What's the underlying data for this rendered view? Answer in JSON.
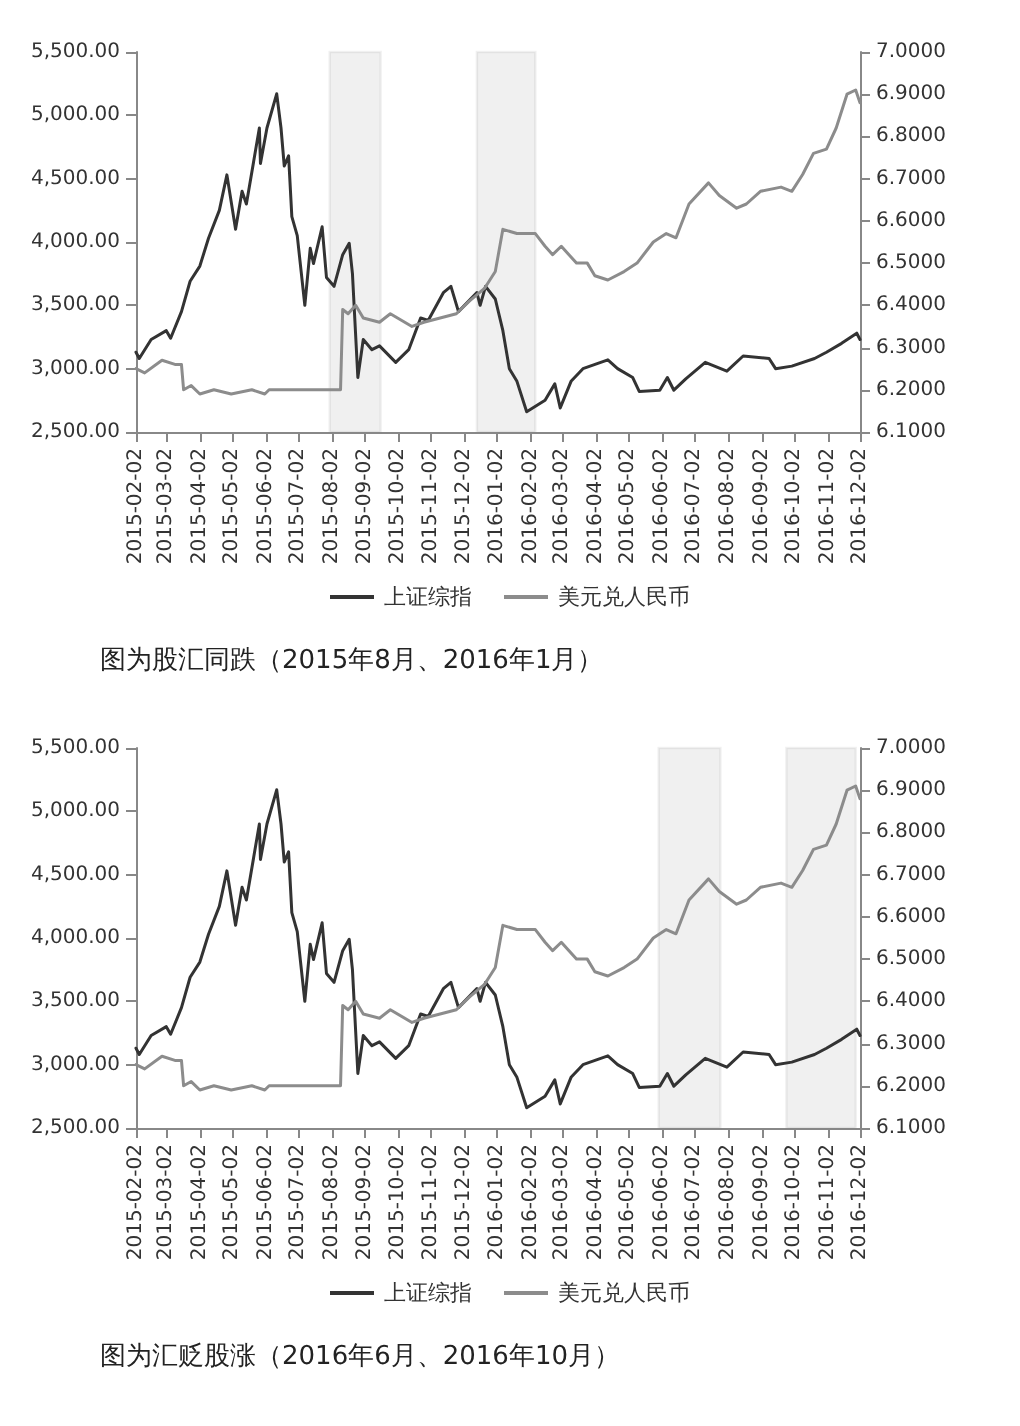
{
  "chart_data": [
    {
      "type": "line",
      "legend": "bottom",
      "marker": "none",
      "line_style": "solid",
      "grid": false,
      "xlim": [
        "2015-02-02",
        "2016-12-02"
      ],
      "xticks": [
        "2015-02-02",
        "2015-03-02",
        "2015-04-02",
        "2015-05-02",
        "2015-06-02",
        "2015-07-02",
        "2015-08-02",
        "2015-09-02",
        "2015-10-02",
        "2015-11-02",
        "2015-12-02",
        "2016-01-02",
        "2016-02-02",
        "2016-03-02",
        "2016-04-02",
        "2016-05-02",
        "2016-06-02",
        "2016-07-02",
        "2016-08-02",
        "2016-09-02",
        "2016-10-02",
        "2016-11-02",
        "2016-12-02"
      ],
      "ylim": [
        2500,
        5500
      ],
      "yticks": [
        {
          "value": 2500,
          "label": "2,500.00"
        },
        {
          "value": 3000,
          "label": "3,000.00"
        },
        {
          "value": 3500,
          "label": "3,500.00"
        },
        {
          "value": 4000,
          "label": "4,000.00"
        },
        {
          "value": 4500,
          "label": "4,500.00"
        },
        {
          "value": 5000,
          "label": "5,000.00"
        },
        {
          "value": 5500,
          "label": "5,500.00"
        }
      ],
      "y2lim": [
        6.1,
        7.0
      ],
      "y2ticks": [
        {
          "value": 6.1,
          "label": "6.1000"
        },
        {
          "value": 6.2,
          "label": "6.2000"
        },
        {
          "value": 6.3,
          "label": "6.3000"
        },
        {
          "value": 6.4,
          "label": "6.4000"
        },
        {
          "value": 6.5,
          "label": "6.5000"
        },
        {
          "value": 6.6,
          "label": "6.6000"
        },
        {
          "value": 6.7,
          "label": "6.7000"
        },
        {
          "value": 6.8,
          "label": "6.8000"
        },
        {
          "value": 6.9,
          "label": "6.9000"
        },
        {
          "value": 7.0,
          "label": "7.0000"
        }
      ],
      "series": [
        {
          "name": "上证综指",
          "color": "#333333",
          "x": [
            "2015-02-02",
            "2015-02-05",
            "2015-02-16",
            "2015-03-02",
            "2015-03-06",
            "2015-03-16",
            "2015-03-24",
            "2015-04-02",
            "2015-04-10",
            "2015-04-20",
            "2015-04-27",
            "2015-05-05",
            "2015-05-11",
            "2015-05-15",
            "2015-05-27",
            "2015-05-28",
            "2015-06-03",
            "2015-06-12",
            "2015-06-16",
            "2015-06-19",
            "2015-06-23",
            "2015-06-26",
            "2015-07-01",
            "2015-07-08",
            "2015-07-13",
            "2015-07-16",
            "2015-07-24",
            "2015-07-28",
            "2015-08-04",
            "2015-08-12",
            "2015-08-18",
            "2015-08-21",
            "2015-08-26",
            "2015-08-31",
            "2015-09-08",
            "2015-09-15",
            "2015-09-30",
            "2015-10-12",
            "2015-10-23",
            "2015-10-30",
            "2015-11-13",
            "2015-11-20",
            "2015-11-27",
            "2015-12-14",
            "2015-12-17",
            "2015-12-22",
            "2015-12-31",
            "2016-01-07",
            "2016-01-13",
            "2016-01-20",
            "2016-01-29",
            "2016-02-15",
            "2016-02-24",
            "2016-02-29",
            "2016-03-10",
            "2016-03-21",
            "2016-04-13",
            "2016-04-22",
            "2016-05-06",
            "2016-05-12",
            "2016-05-31",
            "2016-06-07",
            "2016-06-13",
            "2016-06-24",
            "2016-07-12",
            "2016-08-01",
            "2016-08-16",
            "2016-09-09",
            "2016-09-15",
            "2016-09-30",
            "2016-10-21",
            "2016-11-01",
            "2016-11-15",
            "2016-11-29",
            "2016-12-02"
          ],
          "values": [
            3130,
            3080,
            3230,
            3300,
            3240,
            3450,
            3690,
            3810,
            4030,
            4250,
            4530,
            4100,
            4400,
            4300,
            4900,
            4620,
            4900,
            5170,
            4900,
            4600,
            4680,
            4200,
            4050,
            3500,
            3950,
            3830,
            4120,
            3720,
            3650,
            3900,
            3990,
            3750,
            2930,
            3230,
            3150,
            3180,
            3050,
            3150,
            3400,
            3380,
            3600,
            3650,
            3450,
            3600,
            3500,
            3650,
            3550,
            3300,
            3000,
            2900,
            2660,
            2750,
            2880,
            2690,
            2900,
            3000,
            3070,
            3000,
            2930,
            2820,
            2830,
            2930,
            2830,
            2920,
            3050,
            2980,
            3100,
            3080,
            3000,
            3020,
            3080,
            3130,
            3200,
            3280,
            3230
          ]
        },
        {
          "name": "美元兑人民币",
          "color": "#8c8c8c",
          "axis": "y2",
          "x": [
            "2015-02-02",
            "2015-02-10",
            "2015-02-26",
            "2015-03-10",
            "2015-03-16",
            "2015-03-18",
            "2015-03-25",
            "2015-04-02",
            "2015-04-15",
            "2015-05-01",
            "2015-05-20",
            "2015-06-01",
            "2015-06-05",
            "2015-07-01",
            "2015-08-10",
            "2015-08-12",
            "2015-08-17",
            "2015-08-24",
            "2015-08-31",
            "2015-09-15",
            "2015-09-25",
            "2015-10-15",
            "2015-10-26",
            "2015-11-10",
            "2015-11-25",
            "2015-12-07",
            "2015-12-21",
            "2015-12-31",
            "2016-01-07",
            "2016-01-20",
            "2016-02-06",
            "2016-02-15",
            "2016-02-22",
            "2016-03-01",
            "2016-03-15",
            "2016-03-25",
            "2016-04-01",
            "2016-04-13",
            "2016-04-28",
            "2016-05-10",
            "2016-05-25",
            "2016-06-06",
            "2016-06-15",
            "2016-06-27",
            "2016-07-15",
            "2016-07-25",
            "2016-08-10",
            "2016-08-19",
            "2016-09-01",
            "2016-09-20",
            "2016-09-30",
            "2016-10-10",
            "2016-10-20",
            "2016-11-01",
            "2016-11-10",
            "2016-11-20",
            "2016-11-28",
            "2016-12-02"
          ],
          "values": [
            6.25,
            6.24,
            6.27,
            6.26,
            6.26,
            6.2,
            6.21,
            6.19,
            6.2,
            6.19,
            6.2,
            6.19,
            6.2,
            6.2,
            6.2,
            6.39,
            6.38,
            6.4,
            6.37,
            6.36,
            6.38,
            6.35,
            6.36,
            6.37,
            6.38,
            6.41,
            6.44,
            6.48,
            6.58,
            6.57,
            6.57,
            6.54,
            6.52,
            6.54,
            6.5,
            6.5,
            6.47,
            6.46,
            6.48,
            6.5,
            6.55,
            6.57,
            6.56,
            6.64,
            6.69,
            6.66,
            6.63,
            6.64,
            6.67,
            6.68,
            6.67,
            6.71,
            6.76,
            6.77,
            6.82,
            6.9,
            6.91,
            6.88
          ]
        }
      ],
      "bands": [
        {
          "axis": "x",
          "from": "2015-07-31",
          "to": "2015-09-16",
          "color": "#808080"
        },
        {
          "axis": "x",
          "from": "2015-12-14",
          "to": "2016-02-06",
          "color": "#808080"
        }
      ],
      "annotations": [
        "图为股汇同跌（2015年8月、2016年1月）"
      ]
    },
    {
      "type": "line",
      "legend": "bottom",
      "marker": "none",
      "line_style": "solid",
      "grid": false,
      "xlim": [
        "2015-02-02",
        "2016-12-02"
      ],
      "xticks": [
        "2015-02-02",
        "2015-03-02",
        "2015-04-02",
        "2015-05-02",
        "2015-06-02",
        "2015-07-02",
        "2015-08-02",
        "2015-09-02",
        "2015-10-02",
        "2015-11-02",
        "2015-12-02",
        "2016-01-02",
        "2016-02-02",
        "2016-03-02",
        "2016-04-02",
        "2016-05-02",
        "2016-06-02",
        "2016-07-02",
        "2016-08-02",
        "2016-09-02",
        "2016-10-02",
        "2016-11-02",
        "2016-12-02"
      ],
      "ylim": [
        2500,
        5500
      ],
      "yticks": [
        {
          "value": 2500,
          "label": "2,500.00"
        },
        {
          "value": 3000,
          "label": "3,000.00"
        },
        {
          "value": 3500,
          "label": "3,500.00"
        },
        {
          "value": 4000,
          "label": "4,000.00"
        },
        {
          "value": 4500,
          "label": "4,500.00"
        },
        {
          "value": 5000,
          "label": "5,000.00"
        },
        {
          "value": 5500,
          "label": "5,500.00"
        }
      ],
      "y2lim": [
        6.1,
        7.0
      ],
      "y2ticks": [
        {
          "value": 6.1,
          "label": "6.1000"
        },
        {
          "value": 6.2,
          "label": "6.2000"
        },
        {
          "value": 6.3,
          "label": "6.3000"
        },
        {
          "value": 6.4,
          "label": "6.4000"
        },
        {
          "value": 6.5,
          "label": "6.5000"
        },
        {
          "value": 6.6,
          "label": "6.6000"
        },
        {
          "value": 6.7,
          "label": "6.7000"
        },
        {
          "value": 6.8,
          "label": "6.8000"
        },
        {
          "value": 6.9,
          "label": "6.9000"
        },
        {
          "value": 7.0,
          "label": "7.0000"
        }
      ],
      "series": [
        {
          "name": "上证综指",
          "color": "#333333",
          "x": [
            "2015-02-02",
            "2015-02-05",
            "2015-02-16",
            "2015-03-02",
            "2015-03-06",
            "2015-03-16",
            "2015-03-24",
            "2015-04-02",
            "2015-04-10",
            "2015-04-20",
            "2015-04-27",
            "2015-05-05",
            "2015-05-11",
            "2015-05-15",
            "2015-05-27",
            "2015-05-28",
            "2015-06-03",
            "2015-06-12",
            "2015-06-16",
            "2015-06-19",
            "2015-06-23",
            "2015-06-26",
            "2015-07-01",
            "2015-07-08",
            "2015-07-13",
            "2015-07-16",
            "2015-07-24",
            "2015-07-28",
            "2015-08-04",
            "2015-08-12",
            "2015-08-18",
            "2015-08-21",
            "2015-08-26",
            "2015-08-31",
            "2015-09-08",
            "2015-09-15",
            "2015-09-30",
            "2015-10-12",
            "2015-10-23",
            "2015-10-30",
            "2015-11-13",
            "2015-11-20",
            "2015-11-27",
            "2015-12-14",
            "2015-12-17",
            "2015-12-22",
            "2015-12-31",
            "2016-01-07",
            "2016-01-13",
            "2016-01-20",
            "2016-01-29",
            "2016-02-15",
            "2016-02-24",
            "2016-02-29",
            "2016-03-10",
            "2016-03-21",
            "2016-04-13",
            "2016-04-22",
            "2016-05-06",
            "2016-05-12",
            "2016-05-31",
            "2016-06-07",
            "2016-06-13",
            "2016-06-24",
            "2016-07-12",
            "2016-08-01",
            "2016-08-16",
            "2016-09-09",
            "2016-09-15",
            "2016-09-30",
            "2016-10-21",
            "2016-11-01",
            "2016-11-15",
            "2016-11-29",
            "2016-12-02"
          ],
          "values": [
            3130,
            3080,
            3230,
            3300,
            3240,
            3450,
            3690,
            3810,
            4030,
            4250,
            4530,
            4100,
            4400,
            4300,
            4900,
            4620,
            4900,
            5170,
            4900,
            4600,
            4680,
            4200,
            4050,
            3500,
            3950,
            3830,
            4120,
            3720,
            3650,
            3900,
            3990,
            3750,
            2930,
            3230,
            3150,
            3180,
            3050,
            3150,
            3400,
            3380,
            3600,
            3650,
            3450,
            3600,
            3500,
            3650,
            3550,
            3300,
            3000,
            2900,
            2660,
            2750,
            2880,
            2690,
            2900,
            3000,
            3070,
            3000,
            2930,
            2820,
            2830,
            2930,
            2830,
            2920,
            3050,
            2980,
            3100,
            3080,
            3000,
            3020,
            3080,
            3130,
            3200,
            3280,
            3230
          ]
        },
        {
          "name": "美元兑人民币",
          "color": "#8c8c8c",
          "axis": "y2",
          "x": [
            "2015-02-02",
            "2015-02-10",
            "2015-02-26",
            "2015-03-10",
            "2015-03-16",
            "2015-03-18",
            "2015-03-25",
            "2015-04-02",
            "2015-04-15",
            "2015-05-01",
            "2015-05-20",
            "2015-06-01",
            "2015-06-05",
            "2015-07-01",
            "2015-08-10",
            "2015-08-12",
            "2015-08-17",
            "2015-08-24",
            "2015-08-31",
            "2015-09-15",
            "2015-09-25",
            "2015-10-15",
            "2015-10-26",
            "2015-11-10",
            "2015-11-25",
            "2015-12-07",
            "2015-12-21",
            "2015-12-31",
            "2016-01-07",
            "2016-01-20",
            "2016-02-06",
            "2016-02-15",
            "2016-02-22",
            "2016-03-01",
            "2016-03-15",
            "2016-03-25",
            "2016-04-01",
            "2016-04-13",
            "2016-04-28",
            "2016-05-10",
            "2016-05-25",
            "2016-06-06",
            "2016-06-15",
            "2016-06-27",
            "2016-07-15",
            "2016-07-25",
            "2016-08-10",
            "2016-08-19",
            "2016-09-01",
            "2016-09-20",
            "2016-09-30",
            "2016-10-10",
            "2016-10-20",
            "2016-11-01",
            "2016-11-10",
            "2016-11-20",
            "2016-11-28",
            "2016-12-02"
          ],
          "values": [
            6.25,
            6.24,
            6.27,
            6.26,
            6.26,
            6.2,
            6.21,
            6.19,
            6.2,
            6.19,
            6.2,
            6.19,
            6.2,
            6.2,
            6.2,
            6.39,
            6.38,
            6.4,
            6.37,
            6.36,
            6.38,
            6.35,
            6.36,
            6.37,
            6.38,
            6.41,
            6.44,
            6.48,
            6.58,
            6.57,
            6.57,
            6.54,
            6.52,
            6.54,
            6.5,
            6.5,
            6.47,
            6.46,
            6.48,
            6.5,
            6.55,
            6.57,
            6.56,
            6.64,
            6.69,
            6.66,
            6.63,
            6.64,
            6.67,
            6.68,
            6.67,
            6.71,
            6.76,
            6.77,
            6.82,
            6.9,
            6.91,
            6.88
          ]
        }
      ],
      "bands": [
        {
          "axis": "x",
          "from": "2016-05-30",
          "to": "2016-07-26",
          "color": "#808080"
        },
        {
          "axis": "x",
          "from": "2016-09-25",
          "to": "2016-11-28",
          "color": "#808080"
        }
      ],
      "annotations": [
        "图为汇贬股涨（2016年6月、2016年10月）"
      ]
    }
  ]
}
